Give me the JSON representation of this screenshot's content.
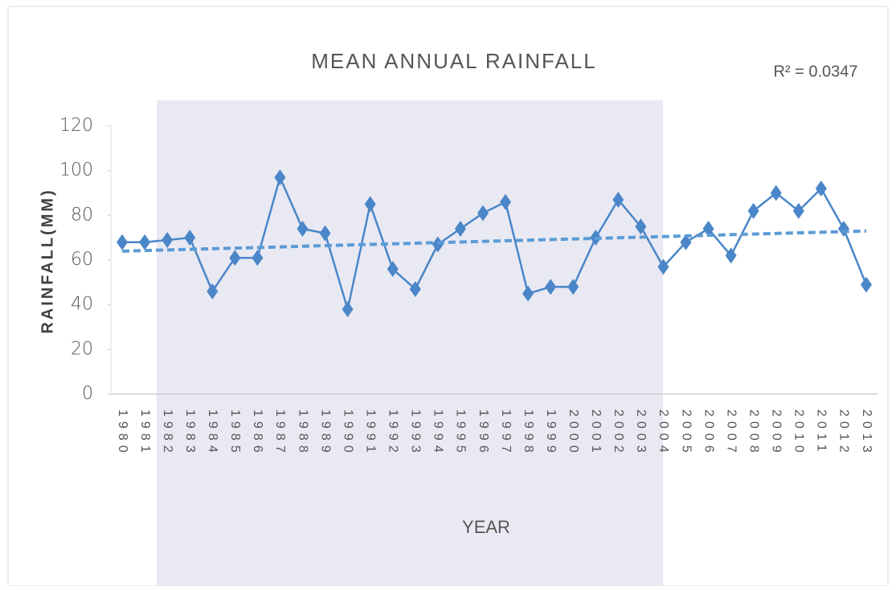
{
  "chart_data": {
    "type": "line",
    "title": "MEAN ANNUAL RAINFALL",
    "annotation": "R² = 0.0347",
    "x_label": "YEAR",
    "y_label": "RAINFALL(MM)",
    "categories": [
      "1980",
      "1981",
      "1982",
      "1983",
      "1984",
      "1985",
      "1986",
      "1987",
      "1988",
      "1989",
      "1990",
      "1991",
      "1992",
      "1993",
      "1994",
      "1995",
      "1996",
      "1997",
      "1998",
      "1999",
      "2000",
      "2001",
      "2002",
      "2003",
      "2004",
      "2005",
      "2006",
      "2007",
      "2008",
      "2009",
      "2010",
      "2011",
      "2012",
      "2013"
    ],
    "series": [
      {
        "color": "#4a86c8",
        "values": [
          68,
          68,
          69,
          70,
          46,
          61,
          61,
          97,
          74,
          72,
          38,
          85,
          56,
          47,
          67,
          74,
          81,
          86,
          45,
          48,
          48,
          70,
          87,
          75,
          57,
          68,
          74,
          62,
          82,
          90,
          82,
          92,
          74,
          49
        ]
      }
    ],
    "trendline": {
      "y_start": 64,
      "y_end": 73,
      "color": "#5b9bd5"
    },
    "ylim": [
      0,
      120
    ],
    "yticks": [
      0,
      20,
      40,
      60,
      80,
      100,
      120
    ]
  }
}
